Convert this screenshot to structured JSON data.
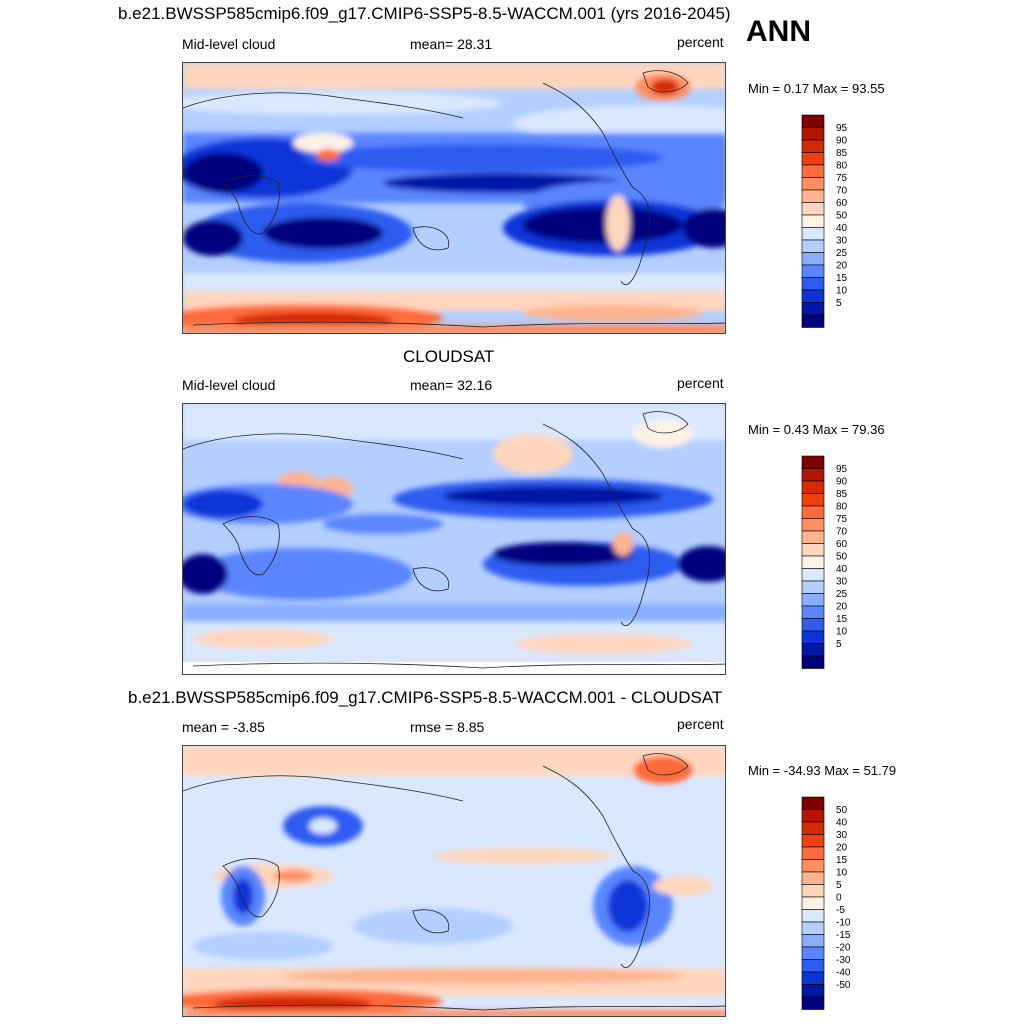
{
  "season": "ANN",
  "panels": [
    {
      "title": "b.e21.BWSSP585cmip6.f09_g17.CMIP6-SSP5-8.5-WACCM.001 (yrs 2016-2045)",
      "left_label": "Mid-level cloud",
      "center_label": "mean=  28.31",
      "units": "percent",
      "minmax": "Min =   0.17 Max =  93.55",
      "colorbar": {
        "ticks": [
          "95",
          "90",
          "85",
          "80",
          "75",
          "70",
          "60",
          "50",
          "40",
          "30",
          "25",
          "20",
          "15",
          "10",
          "5"
        ],
        "colors": [
          "#7f0000",
          "#b31500",
          "#d42c00",
          "#f04010",
          "#ff6b3a",
          "#ff8f60",
          "#ffb38f",
          "#ffd6bd",
          "#fff2e6",
          "#d9e8ff",
          "#b3ceff",
          "#8aaeff",
          "#5a85ff",
          "#2f5cf0",
          "#0a34d8",
          "#0018a8",
          "#00007f"
        ]
      }
    },
    {
      "title": "CLOUDSAT",
      "left_label": "Mid-level cloud",
      "center_label": "mean=  32.16",
      "units": "percent",
      "minmax": "Min =   0.43 Max =  79.36",
      "colorbar": {
        "ticks": [
          "95",
          "90",
          "85",
          "80",
          "75",
          "70",
          "60",
          "50",
          "40",
          "30",
          "25",
          "20",
          "15",
          "10",
          "5"
        ],
        "colors": [
          "#7f0000",
          "#b31500",
          "#d42c00",
          "#f04010",
          "#ff6b3a",
          "#ff8f60",
          "#ffb38f",
          "#ffd6bd",
          "#fff2e6",
          "#d9e8ff",
          "#b3ceff",
          "#8aaeff",
          "#5a85ff",
          "#2f5cf0",
          "#0a34d8",
          "#0018a8",
          "#00007f"
        ]
      }
    },
    {
      "title": "b.e21.BWSSP585cmip6.f09_g17.CMIP6-SSP5-8.5-WACCM.001 - CLOUDSAT",
      "left_label": "mean =  -3.85",
      "center_label": "rmse =   8.85",
      "units": "percent",
      "minmax": "Min = -34.93 Max =  51.79",
      "colorbar": {
        "ticks": [
          "50",
          "40",
          "30",
          "20",
          "15",
          "10",
          "5",
          "0",
          "-5",
          "-10",
          "-15",
          "-20",
          "-30",
          "-40",
          "-50"
        ],
        "colors": [
          "#7f0000",
          "#b31500",
          "#d42c00",
          "#f04010",
          "#ff6b3a",
          "#ff8f60",
          "#ffb38f",
          "#ffd6bd",
          "#fff2e6",
          "#d9e8ff",
          "#b3ceff",
          "#8aaeff",
          "#5a85ff",
          "#2f5cf0",
          "#0a34d8",
          "#0018a8",
          "#00007f"
        ]
      }
    }
  ],
  "chart_data": [
    {
      "type": "heatmap",
      "title": "b.e21.BWSSP585cmip6.f09_g17.CMIP6-SSP5-8.5-WACCM.001 (yrs 2016-2045)",
      "variable": "Mid-level cloud",
      "units": "percent",
      "mean": 28.31,
      "min": 0.17,
      "max": 93.55,
      "contour_levels": [
        5,
        10,
        15,
        20,
        25,
        30,
        40,
        50,
        60,
        70,
        75,
        80,
        85,
        90,
        95
      ]
    },
    {
      "type": "heatmap",
      "title": "CLOUDSAT",
      "variable": "Mid-level cloud",
      "units": "percent",
      "mean": 32.16,
      "min": 0.43,
      "max": 79.36,
      "contour_levels": [
        5,
        10,
        15,
        20,
        25,
        30,
        40,
        50,
        60,
        70,
        75,
        80,
        85,
        90,
        95
      ]
    },
    {
      "type": "heatmap",
      "title": "b.e21.BWSSP585cmip6.f09_g17.CMIP6-SSP5-8.5-WACCM.001 - CLOUDSAT",
      "units": "percent",
      "mean": -3.85,
      "rmse": 8.85,
      "min": -34.93,
      "max": 51.79,
      "contour_levels": [
        -50,
        -40,
        -30,
        -20,
        -15,
        -10,
        -5,
        0,
        5,
        10,
        15,
        20,
        30,
        40,
        50
      ]
    }
  ]
}
